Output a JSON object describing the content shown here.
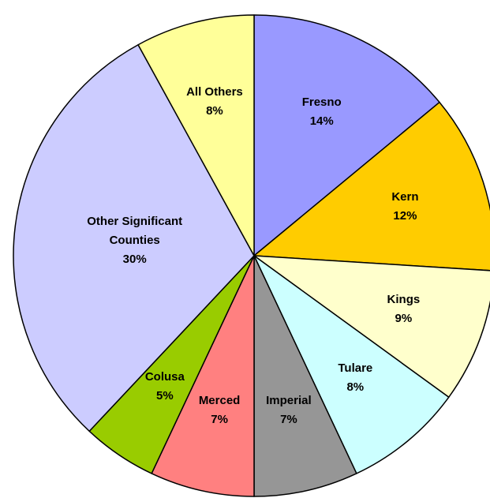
{
  "chart_data": {
    "type": "pie",
    "categories": [
      "Fresno",
      "Kern",
      "Kings",
      "Tulare",
      "Imperial",
      "Merced",
      "Colusa",
      "Other Significant Counties",
      "All Others"
    ],
    "values": [
      14,
      12,
      9,
      8,
      7,
      7,
      5,
      30,
      8
    ],
    "value_labels": [
      "14%",
      "12%",
      "9%",
      "8%",
      "7%",
      "7%",
      "5%",
      "30%",
      "8%"
    ],
    "colors": [
      "#9999ff",
      "#ffcc00",
      "#ffffcc",
      "#ccffff",
      "#969696",
      "#ff8080",
      "#99cc00",
      "#ccccff",
      "#ffff99"
    ]
  }
}
